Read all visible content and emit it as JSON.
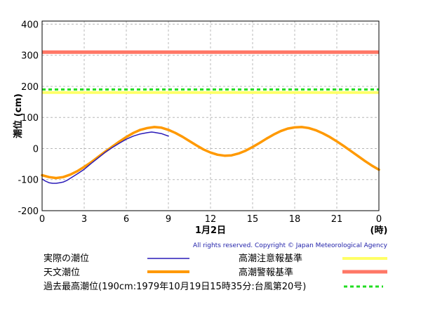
{
  "chart_data": {
    "type": "line",
    "ylabel": "潮位 (cm)",
    "xlabel_date": "1月2日",
    "xlabel_unit": "(時)",
    "xlim": [
      0,
      24
    ],
    "ylim": [
      -200,
      410
    ],
    "x_ticks": [
      "0",
      "3",
      "6",
      "9",
      "12",
      "15",
      "18",
      "21",
      "0"
    ],
    "y_ticks": [
      "-200",
      "-100",
      "0",
      "100",
      "200",
      "300",
      "400"
    ],
    "grid": true,
    "copyright": "All rights reserved. Copyright © Japan Meteorological Agency",
    "series": [
      {
        "name": "天文潮位",
        "color": "#ff9900",
        "x": [
          0,
          0.5,
          1,
          1.5,
          2,
          2.5,
          3,
          3.5,
          4,
          4.5,
          5,
          5.5,
          6,
          6.5,
          7,
          7.5,
          8,
          8.5,
          9,
          9.5,
          10,
          10.5,
          11,
          11.5,
          12,
          12.5,
          13,
          13.5,
          14,
          14.5,
          15,
          15.5,
          16,
          16.5,
          17,
          17.5,
          18,
          18.5,
          19,
          19.5,
          20,
          20.5,
          21,
          21.5,
          22,
          22.5,
          23,
          23.5,
          24
        ],
        "values": [
          -86,
          -92,
          -95,
          -92,
          -84,
          -73,
          -59,
          -44,
          -27,
          -10,
          6,
          22,
          37,
          50,
          60,
          66,
          69,
          67,
          60,
          50,
          38,
          24,
          10,
          -3,
          -13,
          -20,
          -23,
          -22,
          -16,
          -7,
          5,
          18,
          32,
          45,
          56,
          64,
          68,
          69,
          66,
          59,
          49,
          37,
          23,
          8,
          -8,
          -24,
          -40,
          -55,
          -68
        ]
      },
      {
        "name": "実際の潮位",
        "color": "#2a1ab8",
        "x": [
          0,
          0.25,
          0.5,
          0.75,
          1,
          1.25,
          1.5,
          1.75,
          2,
          2.5,
          3,
          3.5,
          4,
          4.5,
          5,
          5.5,
          6,
          6.5,
          7,
          7.5,
          7.8,
          8,
          8.5,
          9
        ],
        "values": [
          -98,
          -105,
          -110,
          -112,
          -112,
          -110,
          -108,
          -103,
          -96,
          -82,
          -67,
          -48,
          -30,
          -12,
          3,
          17,
          30,
          40,
          47,
          51,
          53,
          52,
          48,
          40
        ]
      }
    ],
    "reference_lines": [
      {
        "name": "高潮注意報基準",
        "value": 180,
        "color": "#ffff66"
      },
      {
        "name": "過去最高潮位(190cm:1979年10月19日15時35分:台風第20号)",
        "value": 190,
        "color": "#22dd22",
        "dashed": true
      },
      {
        "name": "高潮警報基準",
        "value": 310,
        "color": "#ff7766"
      }
    ]
  },
  "legend": {
    "actual": "実際の潮位",
    "astronomical": "天文潮位",
    "record": "過去最高潮位(190cm:1979年10月19日15時35分:台風第20号)",
    "advisory": "高潮注意報基準",
    "warning": "高潮警報基準",
    "colors": {
      "actual": "#2a1ab8",
      "astronomical": "#ff9900",
      "record": "#22dd22",
      "advisory": "#ffff66",
      "warning": "#ff7766"
    }
  }
}
